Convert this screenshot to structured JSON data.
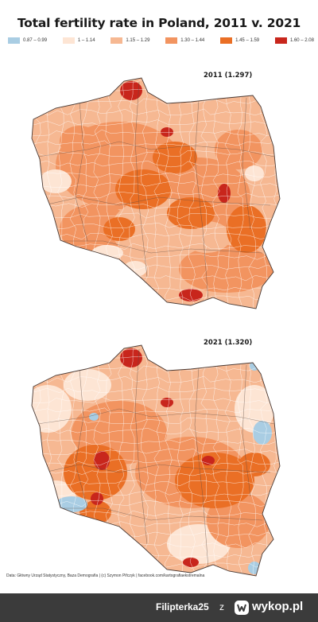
{
  "title": "Total fertility rate in Poland, 2011 v. 2021",
  "legend": [
    {
      "label": "0.87 – 0.99",
      "color": "#a9cde3"
    },
    {
      "label": "1 – 1.14",
      "color": "#fde5d4"
    },
    {
      "label": "1.15 – 1.29",
      "color": "#f6b892"
    },
    {
      "label": "1.30 – 1.44",
      "color": "#f29460"
    },
    {
      "label": "1.45 – 1.59",
      "color": "#ea6f25"
    },
    {
      "label": "1.60 – 2.08",
      "color": "#c8261c"
    }
  ],
  "maps": [
    {
      "label": "2011 (1.297)",
      "year": 2011,
      "national_tfr": 1.297
    },
    {
      "label": "2021 (1.320)",
      "year": 2021,
      "national_tfr": 1.32
    }
  ],
  "source": "Data: Główny Urząd Statystyczny,  Baza Demografia  | (c) Szymon Pifczyk | facebook.com/kartografiaekstremalna",
  "footer": {
    "user": "Filipterka25",
    "separator": "z",
    "site": "wykop.pl",
    "background": "#3b3b3b"
  }
}
